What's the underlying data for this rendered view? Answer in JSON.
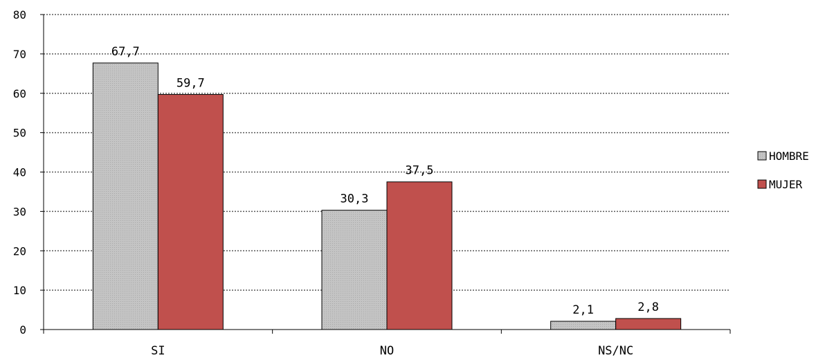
{
  "chart_data": {
    "type": "bar",
    "title": "",
    "xlabel": "",
    "ylabel": "",
    "categories": [
      "SI",
      "NO",
      "NS/NC"
    ],
    "series": [
      {
        "name": "HOMBRE",
        "values": [
          67.7,
          30.3,
          2.1
        ],
        "labels": [
          "67,7",
          "30,3",
          "2,1"
        ],
        "color": "#c0c0c0"
      },
      {
        "name": "MUJER",
        "values": [
          59.7,
          37.5,
          2.8
        ],
        "labels": [
          "59,7",
          "37,5",
          "2,8"
        ],
        "color": "#c0504d"
      }
    ],
    "ylim": [
      0,
      80
    ],
    "yticks": [
      0,
      10,
      20,
      30,
      40,
      50,
      60,
      70,
      80
    ],
    "grid": true,
    "legend_position": "right"
  }
}
